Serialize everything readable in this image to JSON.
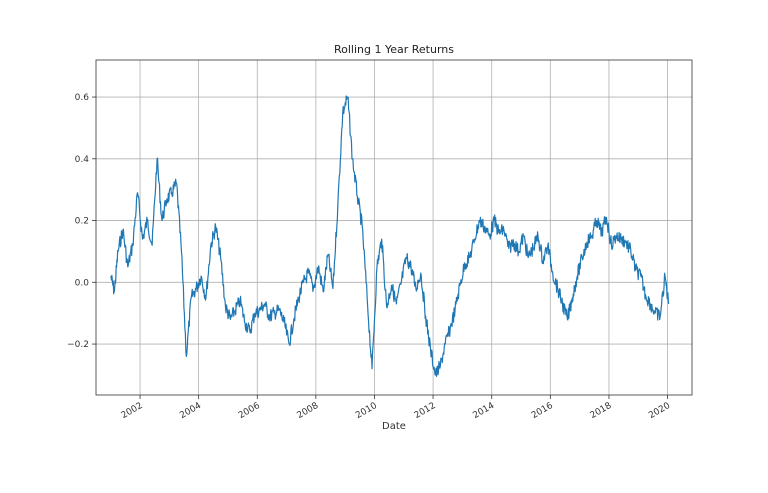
{
  "chart_data": {
    "type": "line",
    "title": "Rolling 1 Year Returns",
    "xlabel": "Date",
    "ylabel": "",
    "x_axis_type": "date",
    "xlim": [
      "2000-07-01",
      "2020-11-01"
    ],
    "ylim": [
      -0.365,
      0.72
    ],
    "x_tick_labels": [
      "2002",
      "2004",
      "2006",
      "2008",
      "2010",
      "2012",
      "2014",
      "2016",
      "2018",
      "2020"
    ],
    "y_ticks": [
      -0.2,
      0.0,
      0.2,
      0.4,
      0.6
    ],
    "y_tick_labels": [
      "−0.2",
      "0.0",
      "0.2",
      "0.4",
      "0.6"
    ],
    "grid": true,
    "legend": "none",
    "line_color": "#1f77b4",
    "series": [
      {
        "x": [
          "2001-01-01",
          "2001-02-15",
          "2001-04-01",
          "2001-06-01",
          "2001-08-01",
          "2001-10-01",
          "2001-12-01",
          "2002-02-01",
          "2002-04-01",
          "2002-06-01",
          "2002-08-01",
          "2002-10-01",
          "2002-12-01",
          "2003-02-01",
          "2003-04-01",
          "2003-06-01",
          "2003-08-01",
          "2003-10-01",
          "2003-12-01",
          "2004-02-01",
          "2004-04-01",
          "2004-06-01",
          "2004-08-01",
          "2004-10-01",
          "2004-12-01",
          "2005-02-01",
          "2005-04-01",
          "2005-06-01",
          "2005-08-01",
          "2005-10-01",
          "2005-12-01",
          "2006-02-01",
          "2006-04-01",
          "2006-06-01",
          "2006-08-01",
          "2006-10-01",
          "2006-12-01",
          "2007-02-01",
          "2007-04-01",
          "2007-06-01",
          "2007-08-01",
          "2007-10-01",
          "2007-12-01",
          "2008-02-01",
          "2008-04-01",
          "2008-06-01",
          "2008-08-01",
          "2008-10-01",
          "2008-12-01",
          "2009-02-01",
          "2009-04-01",
          "2009-06-01",
          "2009-08-01",
          "2009-10-01",
          "2009-12-01",
          "2010-02-01",
          "2010-04-01",
          "2010-06-01",
          "2010-08-01",
          "2010-10-01",
          "2010-12-01",
          "2011-02-01",
          "2011-04-01",
          "2011-06-01",
          "2011-08-01",
          "2011-10-01",
          "2011-12-01",
          "2012-02-01",
          "2012-04-01",
          "2012-06-01",
          "2012-08-01",
          "2012-10-01",
          "2012-12-01",
          "2013-02-01",
          "2013-04-01",
          "2013-06-01",
          "2013-08-01",
          "2013-10-01",
          "2013-12-01",
          "2014-02-01",
          "2014-04-01",
          "2014-06-01",
          "2014-08-01",
          "2014-10-01",
          "2014-12-01",
          "2015-02-01",
          "2015-04-01",
          "2015-06-01",
          "2015-08-01",
          "2015-10-01",
          "2015-12-01",
          "2016-02-01",
          "2016-04-01",
          "2016-06-01",
          "2016-08-01",
          "2016-10-01",
          "2016-12-01",
          "2017-02-01",
          "2017-04-01",
          "2017-06-01",
          "2017-08-01",
          "2017-10-01",
          "2017-12-01",
          "2018-02-01",
          "2018-04-01",
          "2018-06-01",
          "2018-08-01",
          "2018-10-01",
          "2018-12-01",
          "2019-02-01",
          "2019-04-01",
          "2019-06-01",
          "2019-08-01",
          "2019-10-01",
          "2019-12-01",
          "2020-01-15"
        ],
        "y": [
          0.02,
          -0.03,
          0.1,
          0.17,
          0.05,
          0.12,
          0.29,
          0.14,
          0.2,
          0.12,
          0.4,
          0.2,
          0.27,
          0.29,
          0.32,
          0.1,
          -0.24,
          -0.05,
          -0.02,
          0.02,
          -0.05,
          0.12,
          0.18,
          0.08,
          -0.08,
          -0.12,
          -0.09,
          -0.06,
          -0.13,
          -0.16,
          -0.1,
          -0.09,
          -0.07,
          -0.11,
          -0.1,
          -0.09,
          -0.13,
          -0.2,
          -0.12,
          -0.05,
          0.0,
          0.03,
          -0.02,
          0.05,
          -0.03,
          0.09,
          -0.02,
          0.25,
          0.55,
          0.6,
          0.4,
          0.28,
          0.18,
          -0.05,
          -0.28,
          0.05,
          0.14,
          -0.08,
          -0.01,
          -0.07,
          0.0,
          0.08,
          0.05,
          -0.02,
          0.03,
          -0.11,
          -0.22,
          -0.3,
          -0.27,
          -0.2,
          -0.15,
          -0.09,
          -0.01,
          0.06,
          0.08,
          0.14,
          0.2,
          0.18,
          0.15,
          0.2,
          0.16,
          0.17,
          0.11,
          0.13,
          0.1,
          0.15,
          0.08,
          0.11,
          0.15,
          0.07,
          0.12,
          0.03,
          -0.02,
          -0.07,
          -0.12,
          -0.05,
          0.02,
          0.08,
          0.13,
          0.15,
          0.2,
          0.16,
          0.21,
          0.12,
          0.15,
          0.14,
          0.13,
          0.1,
          0.04,
          0.02,
          -0.04,
          -0.07,
          -0.1,
          -0.11,
          0.02,
          -0.07
        ]
      }
    ]
  }
}
